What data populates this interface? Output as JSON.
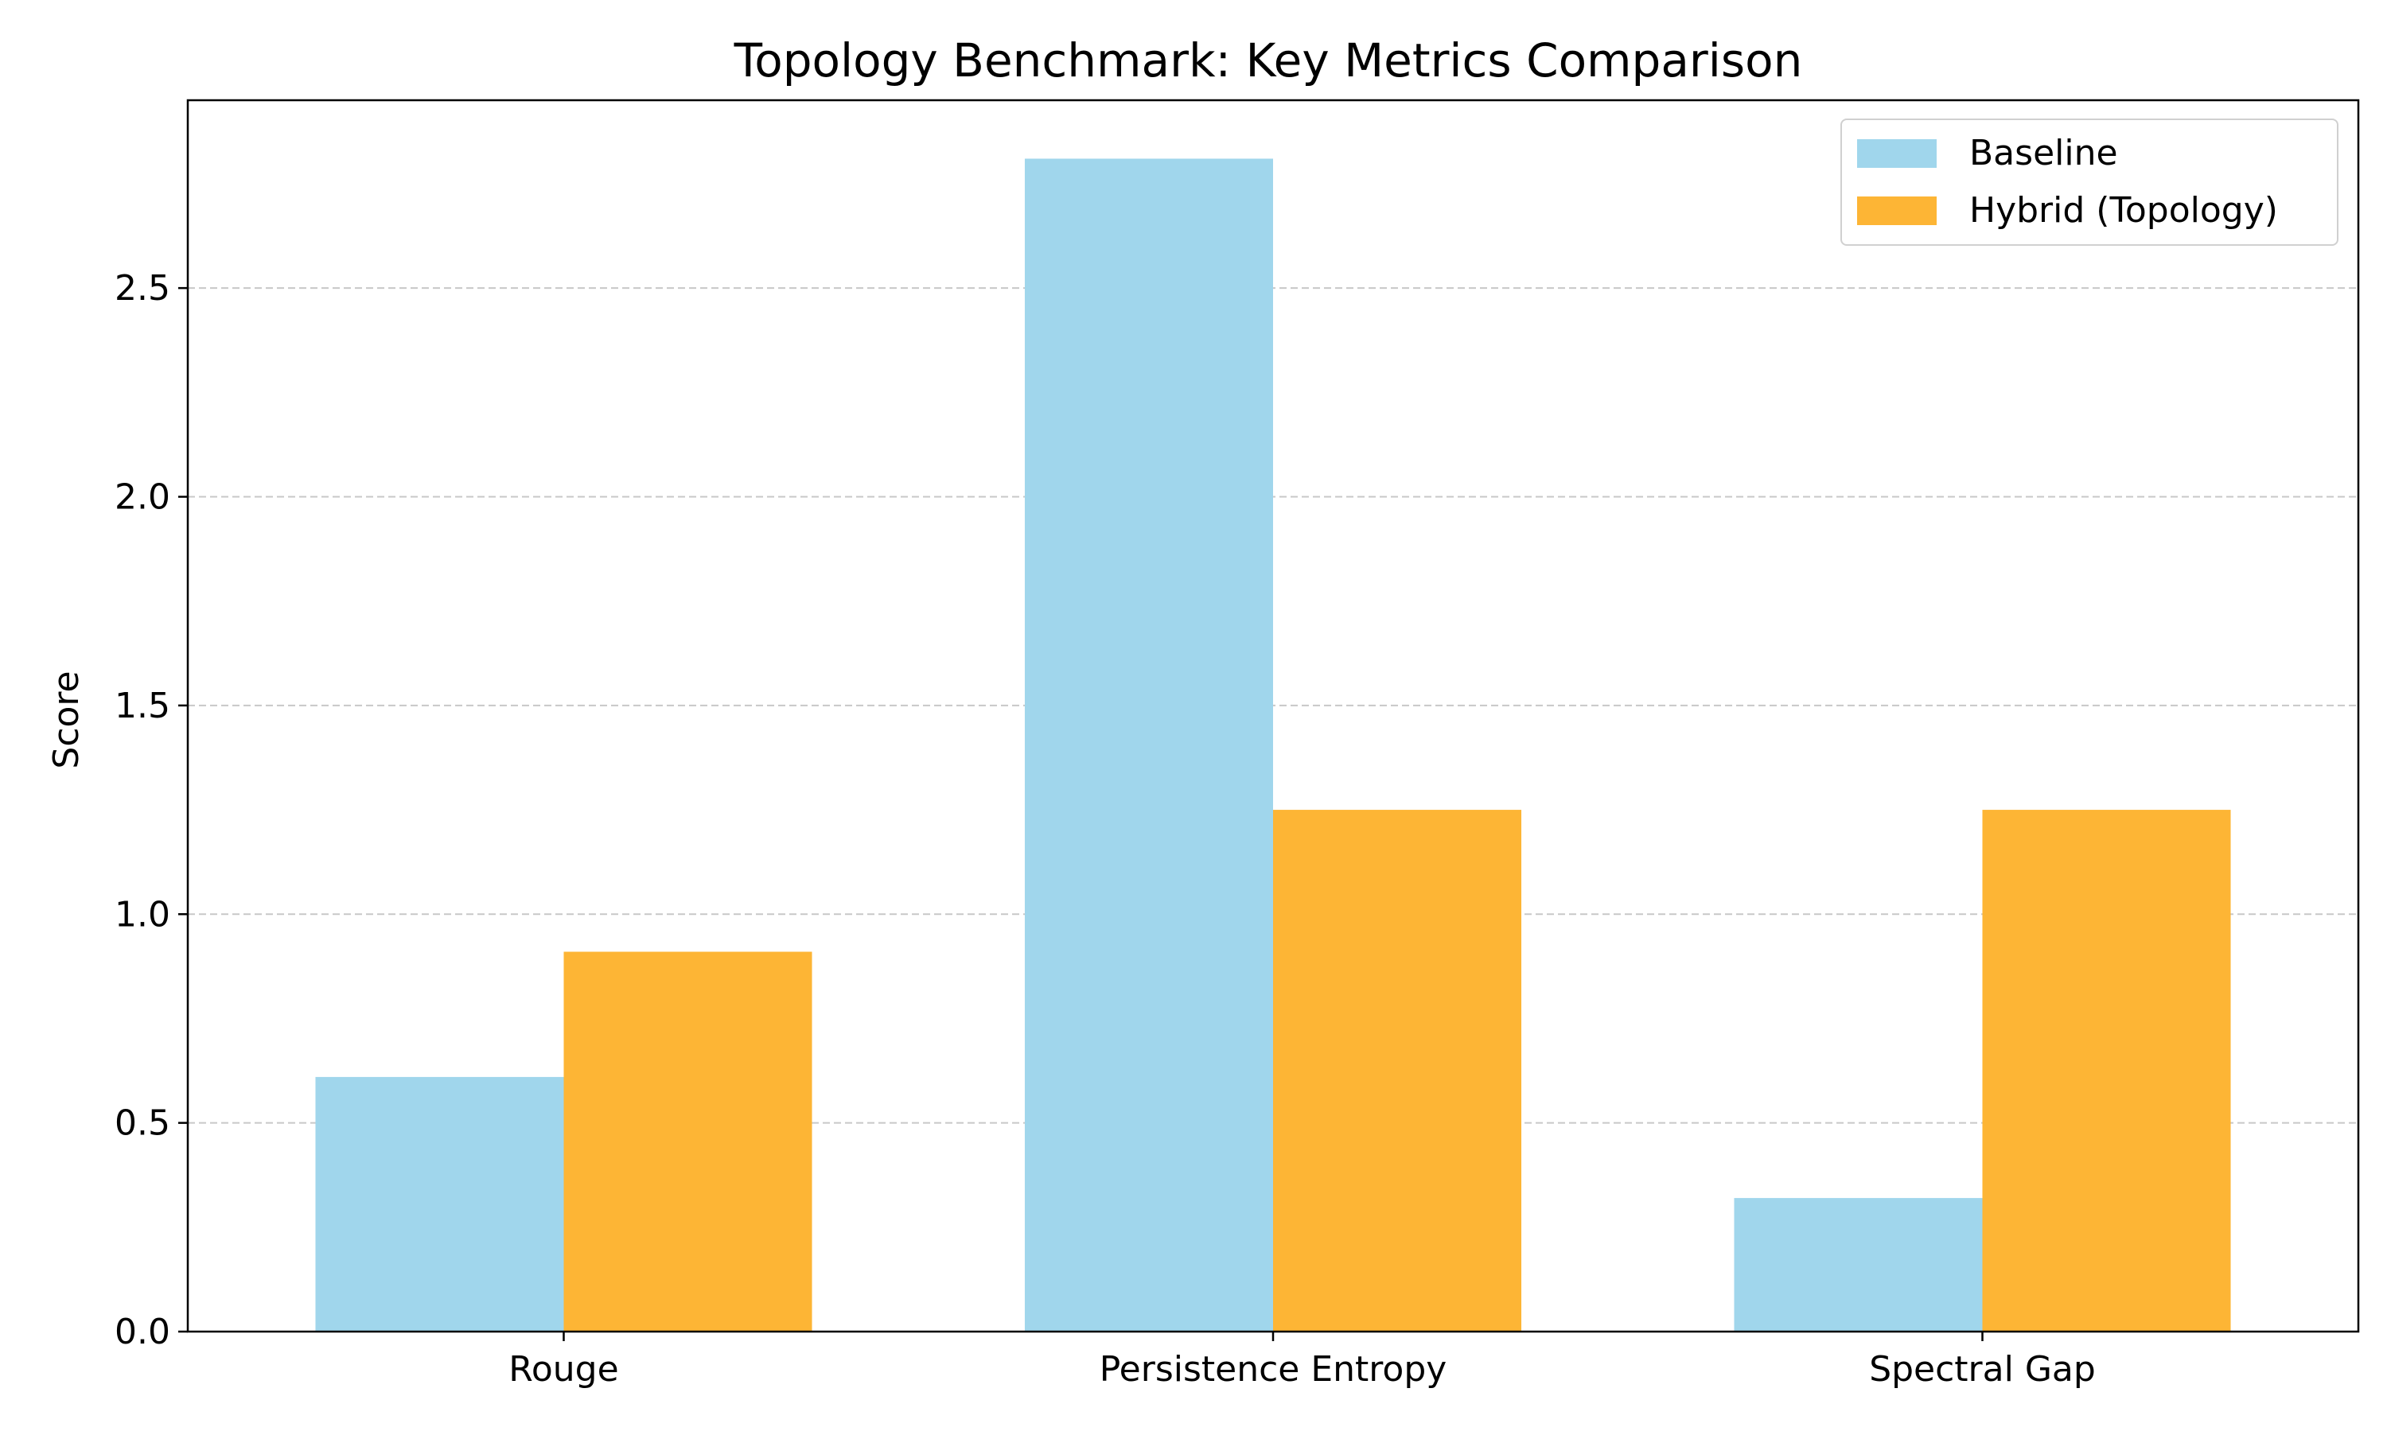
{
  "chart_data": {
    "type": "bar",
    "title": "Topology Benchmark: Key Metrics Comparison",
    "xlabel": "",
    "ylabel": "Score",
    "categories": [
      "Rouge",
      "Persistence Entropy",
      "Spectral Gap"
    ],
    "series": [
      {
        "name": "Baseline",
        "values": [
          0.61,
          2.81,
          0.32
        ],
        "color": "#a0d6ec"
      },
      {
        "name": "Hybrid (Topology)",
        "values": [
          0.91,
          1.25,
          1.25
        ],
        "color": "#fdb535"
      }
    ],
    "ylim": [
      0,
      2.95
    ],
    "yticks": [
      0.0,
      0.5,
      1.0,
      1.5,
      2.0,
      2.5
    ],
    "ytick_labels": [
      "0.0",
      "0.5",
      "1.0",
      "1.5",
      "2.0",
      "2.5"
    ],
    "grid": "y-dashed",
    "grid_color": "#c8c8c8",
    "legend_position": "top-right"
  }
}
